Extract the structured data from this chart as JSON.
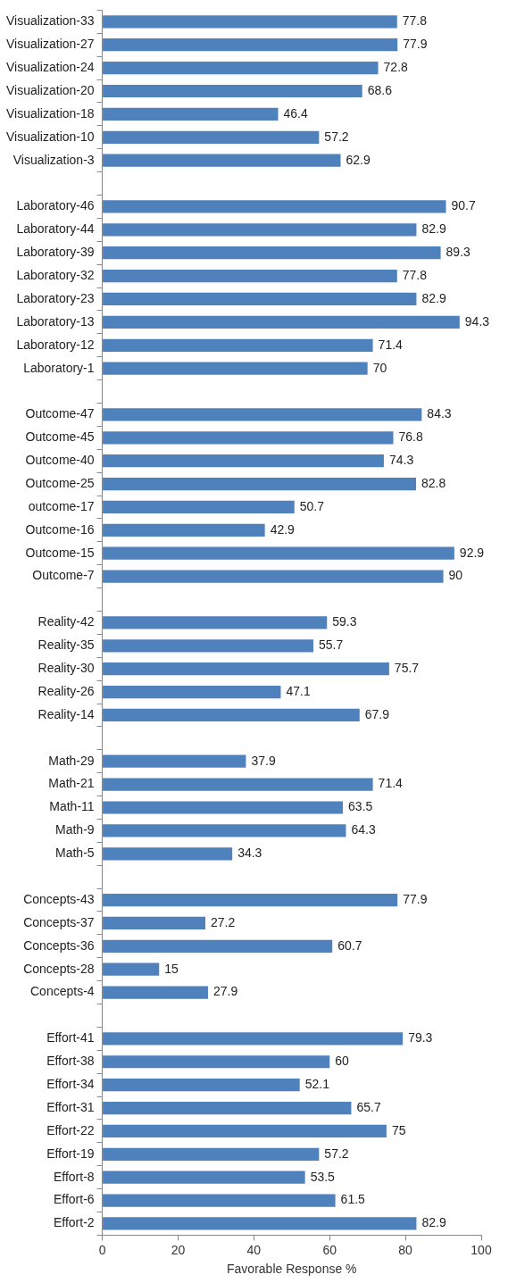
{
  "chart_data": {
    "type": "bar",
    "orientation": "horizontal",
    "xlabel": "Favorable Response %",
    "categories": [
      "Visualization-33",
      "Visualization-27",
      "Visualization-24",
      "Visualization-20",
      "Visualization-18",
      "Visualization-10",
      "Visualization-3",
      null,
      "Laboratory-46",
      "Laboratory-44",
      "Laboratory-39",
      "Laboratory-32",
      "Laboratory-23",
      "Laboratory-13",
      "Laboratory-12",
      "Laboratory-1",
      null,
      "Outcome-47",
      "Outcome-45",
      "Outcome-40",
      "Outcome-25",
      "outcome-17",
      "Outcome-16",
      "Outcome-15",
      "Outcome-7",
      null,
      "Reality-42",
      "Reality-35",
      "Reality-30",
      "Reality-26",
      "Reality-14",
      null,
      "Math-29",
      "Math-21",
      "Math-11",
      "Math-9",
      "Math-5",
      null,
      "Concepts-43",
      "Concepts-37",
      "Concepts-36",
      "Concepts-28",
      "Concepts-4",
      null,
      "Effort-41",
      "Effort-38",
      "Effort-34",
      "Effort-31",
      "Effort-22",
      "Effort-19",
      "Effort-8",
      "Effort-6",
      "Effort-2"
    ],
    "values": [
      77.8,
      77.9,
      72.8,
      68.6,
      46.4,
      57.2,
      62.9,
      null,
      90.7,
      82.9,
      89.3,
      77.8,
      82.9,
      94.3,
      71.4,
      70,
      null,
      84.3,
      76.8,
      74.3,
      82.8,
      50.7,
      42.9,
      92.9,
      90,
      null,
      59.3,
      55.7,
      75.7,
      47.1,
      67.9,
      null,
      37.9,
      71.4,
      63.5,
      64.3,
      34.3,
      null,
      77.9,
      27.2,
      60.7,
      15,
      27.9,
      null,
      79.3,
      60,
      52.1,
      65.7,
      75,
      57.2,
      53.5,
      61.5,
      82.9
    ],
    "color": "#4f81bd",
    "xlim": [
      0,
      100
    ],
    "xticks": [
      0,
      20,
      40,
      60,
      80,
      100
    ],
    "grid": false,
    "legend": false,
    "data_labels": true
  }
}
